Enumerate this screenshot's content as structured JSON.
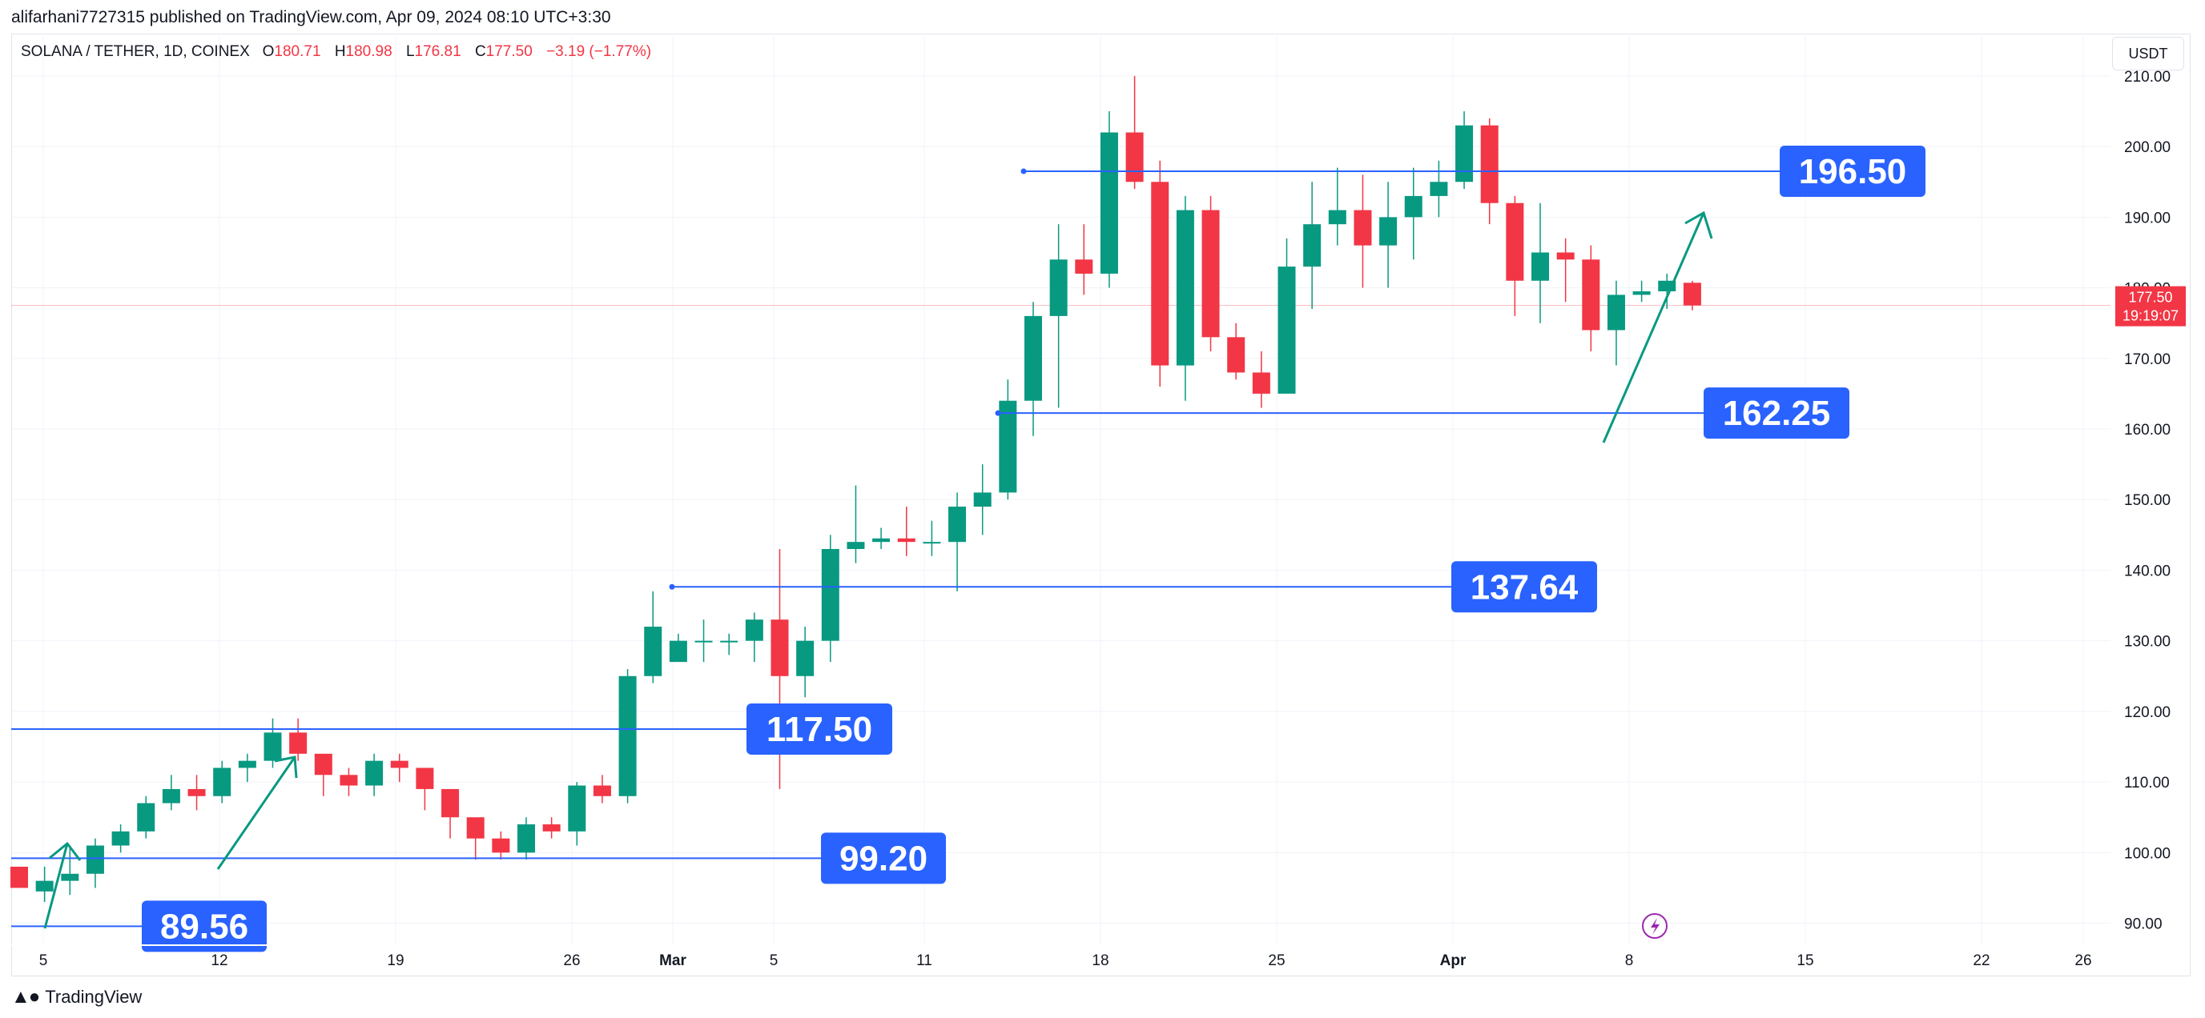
{
  "header": {
    "published_line": "alifarhani7727315 published on TradingView.com, Apr 09, 2024 08:10 UTC+3:30"
  },
  "symbol": {
    "name": "SOLANA / TETHER, 1D, COINEX",
    "o_label": "O",
    "o_value": "180.71",
    "h_label": "H",
    "h_value": "180.98",
    "l_label": "L",
    "l_value": "176.81",
    "c_label": "C",
    "c_value": "177.50",
    "change": "−3.19 (−1.77%)"
  },
  "currency_button": "USDT",
  "footer": {
    "logo_text": "TradingView",
    "logo_icon": "tradingview-logo-icon"
  },
  "colors": {
    "up": "#089981",
    "down": "#f23645",
    "line": "#2962ff",
    "label_bg": "#2962ff"
  },
  "chart_data": {
    "type": "candlestick",
    "title": "",
    "ylim": [
      87,
      216
    ],
    "y_ticks": [
      "90.00",
      "100.00",
      "110.00",
      "120.00",
      "130.00",
      "140.00",
      "150.00",
      "160.00",
      "170.00",
      "180.00",
      "190.00",
      "200.00",
      "210.00"
    ],
    "x_ticks": [
      "5",
      "12",
      "19",
      "26",
      "Mar",
      "5",
      "11",
      "18",
      "25",
      "Apr",
      "8",
      "15",
      "22",
      "26"
    ],
    "price_label": {
      "price": "177.50",
      "countdown": "19:19:07",
      "value": 177.5
    },
    "candles": [
      [
        98,
        95,
        98,
        95
      ],
      [
        94.5,
        96,
        98,
        93
      ],
      [
        96,
        97,
        101,
        94
      ],
      [
        97,
        101,
        102,
        95
      ],
      [
        101,
        103,
        104,
        100
      ],
      [
        103,
        107,
        108,
        102
      ],
      [
        107,
        109,
        111,
        106
      ],
      [
        109,
        108,
        111,
        106
      ],
      [
        108,
        112,
        113,
        107
      ],
      [
        112,
        113,
        114,
        110
      ],
      [
        113,
        117,
        119,
        112
      ],
      [
        117,
        114,
        119,
        113
      ],
      [
        114,
        111,
        112,
        108
      ],
      [
        111,
        109.5,
        112,
        108
      ],
      [
        109.5,
        113,
        114,
        108
      ],
      [
        113,
        112,
        114,
        110
      ],
      [
        112,
        109,
        112,
        106
      ],
      [
        109,
        105,
        109,
        102
      ],
      [
        105,
        102,
        104,
        99
      ],
      [
        102,
        100,
        103,
        99
      ],
      [
        100,
        104,
        105,
        99
      ],
      [
        104,
        103,
        105,
        102
      ],
      [
        103,
        109.5,
        110,
        101
      ],
      [
        109.5,
        108,
        111,
        107
      ],
      [
        108,
        125,
        126,
        107
      ],
      [
        125,
        132,
        137,
        124
      ],
      [
        127,
        130,
        131,
        128
      ],
      [
        130,
        130,
        133,
        127
      ],
      [
        130,
        130,
        131,
        128
      ],
      [
        130,
        133,
        134,
        127
      ],
      [
        133,
        125,
        143,
        109
      ],
      [
        125,
        130,
        132,
        122
      ],
      [
        130,
        143,
        145,
        127
      ],
      [
        143,
        144,
        152,
        141
      ],
      [
        144,
        144.5,
        146,
        143
      ],
      [
        144.5,
        144,
        149,
        142
      ],
      [
        144,
        144,
        147,
        142
      ],
      [
        144,
        149,
        151,
        137
      ],
      [
        149,
        151,
        155,
        145
      ],
      [
        151,
        164,
        167,
        150
      ],
      [
        164,
        176,
        178,
        159
      ],
      [
        176,
        184,
        189,
        163
      ],
      [
        184,
        182,
        189,
        179
      ],
      [
        182,
        202,
        205,
        180
      ],
      [
        202,
        195,
        210,
        194
      ],
      [
        195,
        169,
        198,
        166
      ],
      [
        169,
        191,
        193,
        164
      ],
      [
        191,
        173,
        193,
        171
      ],
      [
        173,
        168,
        175,
        167
      ],
      [
        168,
        165,
        171,
        163
      ],
      [
        165,
        183,
        187,
        171
      ],
      [
        183,
        189,
        195,
        177
      ],
      [
        189,
        191,
        197,
        186
      ],
      [
        191,
        186,
        196,
        180
      ],
      [
        186,
        190,
        195,
        180
      ],
      [
        190,
        193,
        197,
        184
      ],
      [
        193,
        195,
        198,
        190
      ],
      [
        195,
        203,
        205,
        194
      ],
      [
        203,
        192,
        204,
        189
      ],
      [
        192,
        181,
        193,
        176
      ],
      [
        181,
        185,
        192,
        175
      ],
      [
        185,
        184,
        187,
        178
      ],
      [
        184,
        174,
        186,
        171
      ],
      [
        174,
        179,
        181,
        169
      ],
      [
        179,
        179.5,
        181,
        178
      ],
      [
        179.5,
        181,
        182,
        177
      ],
      [
        180.71,
        177.5,
        180.98,
        176.81
      ]
    ],
    "horizontal_levels": [
      {
        "label": "196.50",
        "value": 196.5
      },
      {
        "label": "162.25",
        "value": 162.25
      },
      {
        "label": "137.64",
        "value": 137.64
      },
      {
        "label": "117.50",
        "value": 117.5
      },
      {
        "label": "99.20",
        "value": 99.2
      },
      {
        "label": "89.56",
        "value": 89.56
      }
    ]
  }
}
